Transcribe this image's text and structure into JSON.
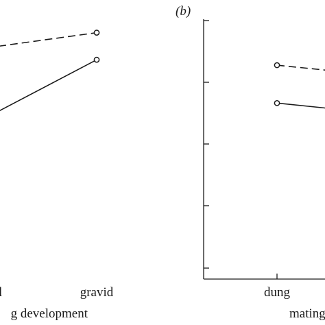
{
  "chart_data": [
    {
      "type": "line",
      "panel_label": "",
      "categories": [
        "d",
        "gravid"
      ],
      "xlabel": "g development",
      "ylabel": "",
      "series": [
        {
          "style": "dashed",
          "values": [
            0.88,
            0.93
          ]
        },
        {
          "style": "solid",
          "values": [
            0.64,
            0.83
          ]
        }
      ],
      "marker": "open-circle",
      "color": "#1a1a1a"
    },
    {
      "type": "line",
      "panel_label": "(b)",
      "categories": [
        "dung",
        ""
      ],
      "xlabel": "mating",
      "ylabel": "",
      "ytick_count": 5,
      "series": [
        {
          "style": "dashed",
          "values": [
            0.81,
            0.78
          ]
        },
        {
          "style": "solid",
          "values": [
            0.67,
            0.64
          ]
        }
      ],
      "marker": "open-circle",
      "color": "#1a1a1a"
    }
  ]
}
